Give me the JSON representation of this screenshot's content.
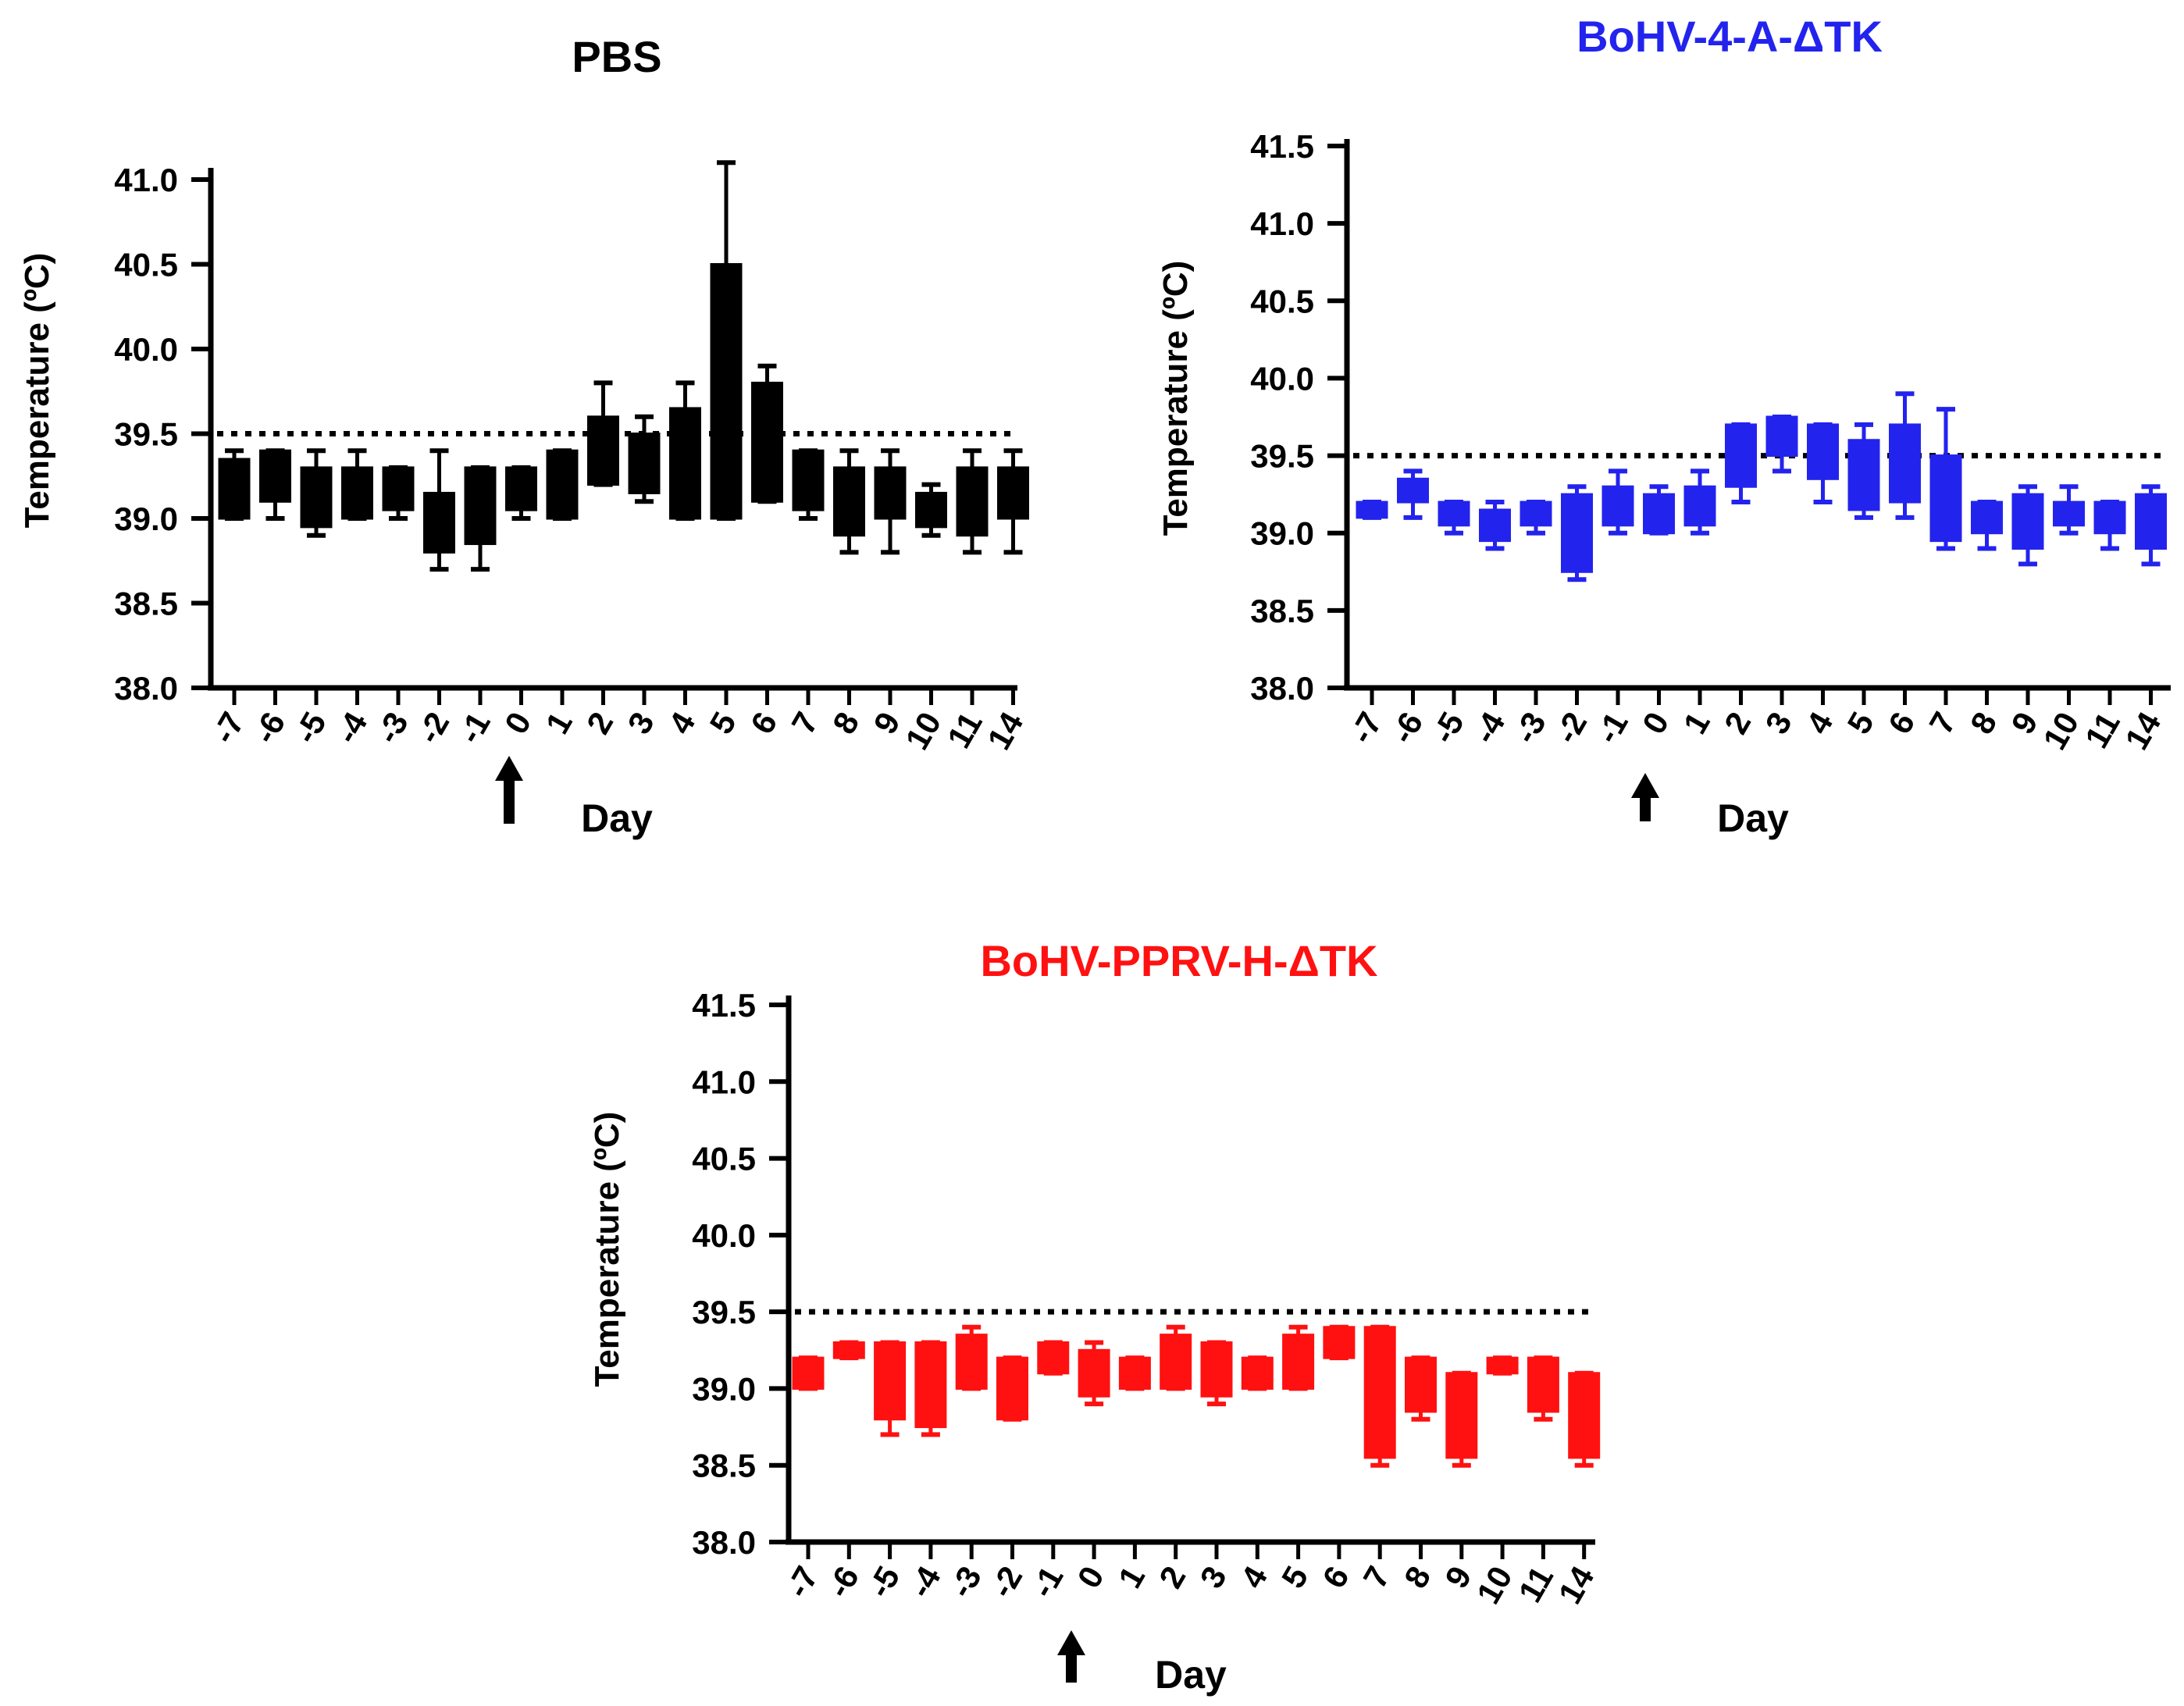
{
  "figure": {
    "colors": {
      "PBS": "#000000",
      "BoHV-4-A-ΔTK": "#2323ee",
      "BoHV-PPRV-H-ΔTK": "#ff1111"
    },
    "arrow_day": "0",
    "arrow_icon": "up-arrow-icon"
  },
  "chart_data": [
    {
      "type": "box",
      "title": "PBS",
      "title_color": "#000000",
      "color": "#000000",
      "xlabel": "Day",
      "ylabel": "Temperature (ºC)",
      "ylim": [
        38.0,
        41.0
      ],
      "yticks": [
        "38.0",
        "38.5",
        "39.0",
        "39.5",
        "40.0",
        "40.5",
        "41.0"
      ],
      "categories": [
        "-7",
        "-6",
        "-5",
        "-4",
        "-3",
        "-2",
        "-1",
        "0",
        "1",
        "2",
        "3",
        "4",
        "5",
        "6",
        "7",
        "8",
        "9",
        "10",
        "11",
        "14"
      ],
      "threshold": 39.5,
      "series": [
        {
          "name": "PBS",
          "min": [
            39.0,
            39.0,
            38.9,
            39.0,
            39.0,
            38.7,
            38.7,
            39.0,
            39.0,
            39.2,
            39.1,
            39.0,
            39.0,
            39.1,
            39.0,
            38.8,
            38.8,
            38.9,
            38.8,
            38.8
          ],
          "q1": [
            39.0,
            39.1,
            38.95,
            39.0,
            39.05,
            38.8,
            38.85,
            39.05,
            39.0,
            39.2,
            39.15,
            39.0,
            39.0,
            39.1,
            39.05,
            38.9,
            39.0,
            38.95,
            38.9,
            39.0
          ],
          "q3": [
            39.35,
            39.4,
            39.3,
            39.3,
            39.3,
            39.15,
            39.3,
            39.3,
            39.4,
            39.6,
            39.5,
            39.65,
            40.5,
            39.8,
            39.4,
            39.3,
            39.3,
            39.15,
            39.3,
            39.3
          ],
          "max": [
            39.4,
            39.4,
            39.4,
            39.4,
            39.3,
            39.4,
            39.3,
            39.3,
            39.4,
            39.8,
            39.6,
            39.8,
            41.1,
            39.9,
            39.4,
            39.4,
            39.4,
            39.2,
            39.4,
            39.4
          ]
        }
      ]
    },
    {
      "type": "box",
      "title": "BoHV-4-A-ΔTK",
      "title_color": "#2323ee",
      "color": "#2323ee",
      "xlabel": "Day",
      "ylabel": "Temperature (ºC)",
      "ylim": [
        38.0,
        41.5
      ],
      "yticks": [
        "38.0",
        "38.5",
        "39.0",
        "39.5",
        "40.0",
        "40.5",
        "41.0",
        "41.5"
      ],
      "categories": [
        "-7",
        "-6",
        "-5",
        "-4",
        "-3",
        "-2",
        "-1",
        "0",
        "1",
        "2",
        "3",
        "4",
        "5",
        "6",
        "7",
        "8",
        "9",
        "10",
        "11",
        "14"
      ],
      "threshold": 39.5,
      "series": [
        {
          "name": "BoHV-4-A-ΔTK",
          "min": [
            39.1,
            39.1,
            39.0,
            38.9,
            39.0,
            38.7,
            39.0,
            39.0,
            39.0,
            39.2,
            39.4,
            39.2,
            39.1,
            39.1,
            38.9,
            38.9,
            38.8,
            39.0,
            38.9,
            38.8
          ],
          "q1": [
            39.1,
            39.2,
            39.05,
            38.95,
            39.05,
            38.75,
            39.05,
            39.0,
            39.05,
            39.3,
            39.5,
            39.35,
            39.15,
            39.2,
            38.95,
            39.0,
            38.9,
            39.05,
            39.0,
            38.9
          ],
          "q3": [
            39.2,
            39.35,
            39.2,
            39.15,
            39.2,
            39.25,
            39.3,
            39.25,
            39.3,
            39.7,
            39.75,
            39.7,
            39.6,
            39.7,
            39.5,
            39.2,
            39.25,
            39.2,
            39.2,
            39.25
          ],
          "max": [
            39.2,
            39.4,
            39.2,
            39.2,
            39.2,
            39.3,
            39.4,
            39.3,
            39.4,
            39.7,
            39.75,
            39.7,
            39.7,
            39.9,
            39.8,
            39.2,
            39.3,
            39.3,
            39.2,
            39.3
          ]
        }
      ]
    },
    {
      "type": "box",
      "title": "BoHV-PPRV-H-ΔTK",
      "title_color": "#ff1111",
      "color": "#ff1111",
      "xlabel": "Day",
      "ylabel": "Temperature (ºC)",
      "ylim": [
        38.0,
        41.5
      ],
      "yticks": [
        "38.0",
        "38.5",
        "39.0",
        "39.5",
        "40.0",
        "40.5",
        "41.0",
        "41.5"
      ],
      "categories": [
        "-7",
        "-6",
        "-5",
        "-4",
        "-3",
        "-2",
        "-1",
        "0",
        "1",
        "2",
        "3",
        "4",
        "5",
        "6",
        "7",
        "8",
        "9",
        "10",
        "11",
        "14"
      ],
      "threshold": 39.5,
      "series": [
        {
          "name": "BoHV-PPRV-H-ΔTK",
          "min": [
            39.0,
            39.2,
            38.7,
            38.7,
            39.0,
            38.8,
            39.1,
            38.9,
            39.0,
            39.0,
            38.9,
            39.0,
            39.0,
            39.2,
            38.5,
            38.8,
            38.5,
            39.1,
            38.8,
            38.5
          ],
          "q1": [
            39.0,
            39.2,
            38.8,
            38.75,
            39.0,
            38.8,
            39.1,
            38.95,
            39.0,
            39.0,
            38.95,
            39.0,
            39.0,
            39.2,
            38.55,
            38.85,
            38.55,
            39.1,
            38.85,
            38.55
          ],
          "q3": [
            39.2,
            39.3,
            39.3,
            39.3,
            39.35,
            39.2,
            39.3,
            39.25,
            39.2,
            39.35,
            39.3,
            39.2,
            39.35,
            39.4,
            39.4,
            39.2,
            39.1,
            39.2,
            39.2,
            39.1
          ],
          "max": [
            39.2,
            39.3,
            39.3,
            39.3,
            39.4,
            39.2,
            39.3,
            39.3,
            39.2,
            39.4,
            39.3,
            39.2,
            39.4,
            39.4,
            39.4,
            39.2,
            39.1,
            39.2,
            39.2,
            39.1
          ]
        }
      ]
    }
  ]
}
